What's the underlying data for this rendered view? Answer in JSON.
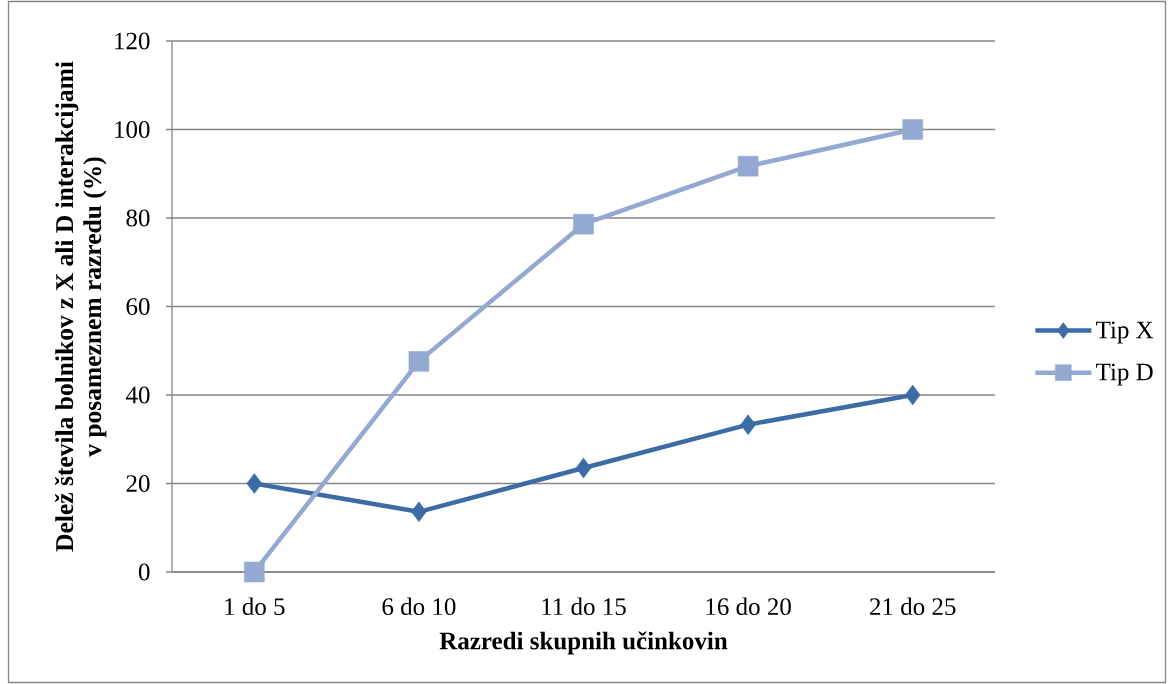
{
  "chart_data": {
    "type": "line",
    "xlabel": "Razredi skupnih učinkovin",
    "ylabel": "Delež števila bolnikov z X ali D interakcijami v posameznem razredu (%)",
    "categories": [
      "1 do 5",
      "6 do 10",
      "11 do 15",
      "16 do 20",
      "21 do 25"
    ],
    "series": [
      {
        "name": "Tip X",
        "color": "#3d6ba5",
        "marker": "diamond",
        "values": [
          20,
          13.6,
          23.5,
          33.3,
          40
        ]
      },
      {
        "name": "Tip D",
        "color": "#93a9d1",
        "marker": "square",
        "values": [
          0,
          47.6,
          78.6,
          91.7,
          100
        ]
      }
    ],
    "ylim": [
      0,
      120
    ],
    "yticks": [
      0,
      20,
      40,
      60,
      80,
      100,
      120
    ],
    "grid": "y",
    "legend": "right",
    "line_style": "solid"
  }
}
